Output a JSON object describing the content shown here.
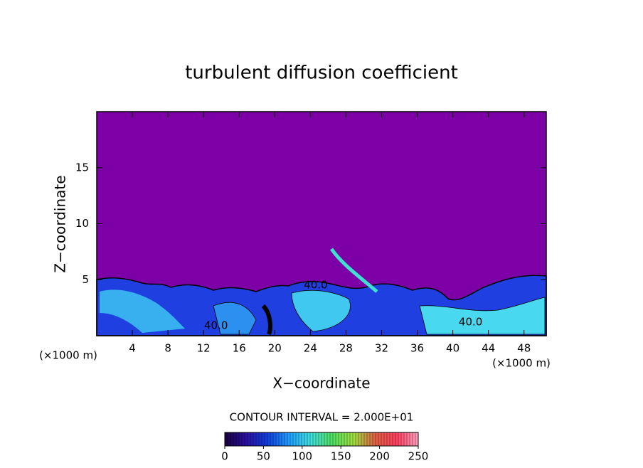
{
  "chart_data": {
    "type": "contour",
    "title": "turbulent diffusion coefficient",
    "xlabel": "X−coordinate",
    "ylabel": "Z−coordinate",
    "x_unit": "(×1000 m)",
    "xlim": [
      0,
      50.5
    ],
    "xticks": [
      4,
      8,
      12,
      16,
      20,
      24,
      28,
      32,
      36,
      40,
      44,
      48
    ],
    "ylim": [
      0,
      20
    ],
    "yticks": [
      5,
      10,
      15
    ],
    "background_color": "#7d00a6",
    "contour_labels": [
      {
        "label": "40.0",
        "x": 13.4,
        "y": 0.9
      },
      {
        "label": "40.0",
        "x": 24.6,
        "y": 4.5
      },
      {
        "label": "40.0",
        "x": 42.0,
        "y": 1.2
      }
    ],
    "contour_interval": "CONTOUR INTERVAL = 2.000E+01",
    "colorbar": {
      "clim": [
        0,
        250
      ],
      "ticks": [
        0,
        50,
        100,
        150,
        200,
        250
      ],
      "colors": [
        "#1a0040",
        "#2a10a0",
        "#1040e0",
        "#20a0ff",
        "#40e0e0",
        "#50e060",
        "#a0e040",
        "#e06040",
        "#ff4060",
        "#ffa0c0"
      ]
    }
  }
}
